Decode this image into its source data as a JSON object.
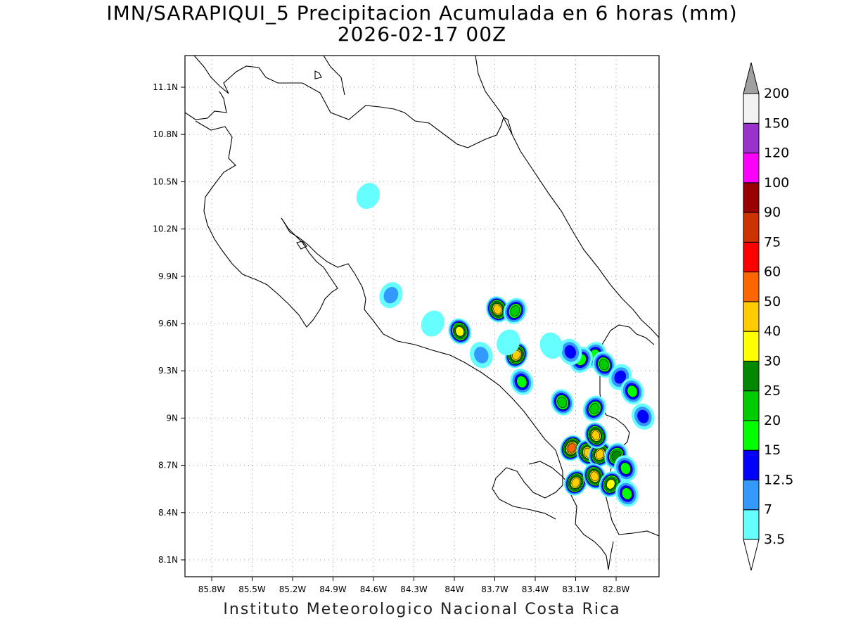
{
  "title": {
    "line1": "IMN/SARAPIQUI_5 Precipitacion Acumulada en 6 horas (mm)",
    "line2": "2026-02-17 00Z"
  },
  "footer": "Instituto Meteorologico Nacional Costa Rica",
  "map": {
    "lon_range": [
      -86.0,
      -83.0
    ],
    "lat_range": [
      8.0,
      11.3
    ],
    "lon_ticks": [
      "85.8W",
      "85.5W",
      "85.2W",
      "84.9W",
      "84.6W",
      "84.3W",
      "84W",
      "83.7W",
      "83.4W",
      "83.1W",
      "82.8W"
    ],
    "lat_ticks": [
      "11.1N",
      "10.8N",
      "10.5N",
      "10.2N",
      "9.9N",
      "9.6N",
      "9.3N",
      "9N",
      "8.7N",
      "8.4N",
      "8.1N"
    ],
    "grid": "dotted"
  },
  "colorbar": {
    "levels": [
      "3.5",
      "7",
      "12.5",
      "15",
      "20",
      "25",
      "30",
      "40",
      "50",
      "60",
      "75",
      "90",
      "100",
      "120",
      "150",
      "200"
    ],
    "colors": [
      "#66ffff",
      "#3399ff",
      "#0000ff",
      "#00ff00",
      "#00cc00",
      "#008800",
      "#ffff00",
      "#ffcc00",
      "#ff6600",
      "#ff0000",
      "#cc3300",
      "#990000",
      "#ff00ff",
      "#9933cc",
      "#f2f2f2",
      "#a0a0a0"
    ]
  },
  "precip_cells": [
    {
      "lon": -83.68,
      "lat": 9.69,
      "max_mm": 45
    },
    {
      "lon": -83.55,
      "lat": 9.68,
      "max_mm": 20
    },
    {
      "lon": -83.96,
      "lat": 9.55,
      "max_mm": 30
    },
    {
      "lon": -83.54,
      "lat": 9.4,
      "max_mm": 40
    },
    {
      "lon": -83.5,
      "lat": 9.23,
      "max_mm": 15
    },
    {
      "lon": -84.47,
      "lat": 9.78,
      "max_mm": 7
    },
    {
      "lon": -83.2,
      "lat": 9.1,
      "max_mm": 20
    },
    {
      "lon": -82.96,
      "lat": 9.4,
      "max_mm": 15
    },
    {
      "lon": -82.89,
      "lat": 9.34,
      "max_mm": 20
    },
    {
      "lon": -83.06,
      "lat": 9.37,
      "max_mm": 15
    },
    {
      "lon": -83.14,
      "lat": 9.42,
      "max_mm": 12.5
    },
    {
      "lon": -82.77,
      "lat": 9.26,
      "max_mm": 12.5
    },
    {
      "lon": -82.68,
      "lat": 9.17,
      "max_mm": 15
    },
    {
      "lon": -82.96,
      "lat": 9.06,
      "max_mm": 20
    },
    {
      "lon": -82.6,
      "lat": 9.01,
      "max_mm": 12.5
    },
    {
      "lon": -83.13,
      "lat": 8.81,
      "max_mm": 50
    },
    {
      "lon": -83.01,
      "lat": 8.78,
      "max_mm": 40
    },
    {
      "lon": -82.92,
      "lat": 8.77,
      "max_mm": 40
    },
    {
      "lon": -82.95,
      "lat": 8.89,
      "max_mm": 40
    },
    {
      "lon": -82.8,
      "lat": 8.76,
      "max_mm": 25
    },
    {
      "lon": -82.73,
      "lat": 8.68,
      "max_mm": 15
    },
    {
      "lon": -83.1,
      "lat": 8.59,
      "max_mm": 40
    },
    {
      "lon": -82.96,
      "lat": 8.63,
      "max_mm": 40
    },
    {
      "lon": -82.84,
      "lat": 8.58,
      "max_mm": 30
    },
    {
      "lon": -82.72,
      "lat": 8.52,
      "max_mm": 15
    },
    {
      "lon": -84.16,
      "lat": 9.6,
      "max_mm": 3.5
    },
    {
      "lon": -83.8,
      "lat": 9.4,
      "max_mm": 7
    },
    {
      "lon": -83.6,
      "lat": 9.48,
      "max_mm": 3.5
    },
    {
      "lon": -83.28,
      "lat": 9.46,
      "max_mm": 3.5
    },
    {
      "lon": -84.64,
      "lat": 10.41,
      "max_mm": 3.5
    }
  ]
}
